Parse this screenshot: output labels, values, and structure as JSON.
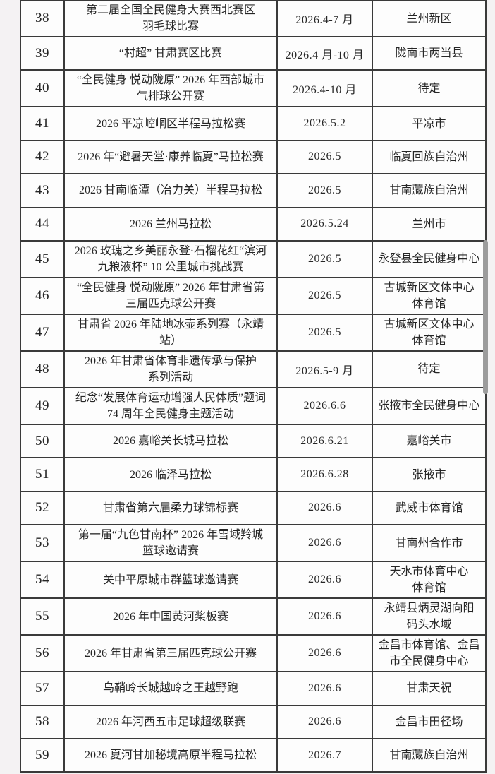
{
  "page": {
    "background_color": "#f4f2f3",
    "cell_background_color": "#fdfdfd",
    "border_color": "#3a3a3a",
    "text_color": "#262626",
    "scrollbar_color": "#9c9c9c"
  },
  "table": {
    "rows": [
      {
        "no": "38",
        "name": "第二届全国全民健身大赛西北赛区\n羽毛球比赛",
        "date": "2026.4-7 月",
        "location": "兰州新区"
      },
      {
        "no": "39",
        "name": "“村超” 甘肃赛区比赛",
        "date": "2026.4 月-10 月",
        "location": "陇南市两当县"
      },
      {
        "no": "40",
        "name": "“全民健身 悦动陇原” 2026 年西部城市\n气排球公开赛",
        "date": "2026.4-10 月",
        "location": "待定"
      },
      {
        "no": "41",
        "name": "2026 平凉崆峒区半程马拉松赛",
        "date": "2026.5.2",
        "location": "平凉市"
      },
      {
        "no": "42",
        "name": "2026 年“避暑天堂·康养临夏”马拉松赛",
        "date": "2026.5",
        "location": "临夏回族自治州"
      },
      {
        "no": "43",
        "name": "2026 甘南临潭（冶力关）半程马拉松",
        "date": "2026.5",
        "location": "甘南藏族自治州"
      },
      {
        "no": "44",
        "name": "2026 兰州马拉松",
        "date": "2026.5.24",
        "location": "兰州市"
      },
      {
        "no": "45",
        "name": "2026 玫瑰之乡美丽永登·石榴花红“滨河\n九粮液杯” 10 公里城市挑战赛",
        "date": "2026.5",
        "location": "永登县全民健身中心"
      },
      {
        "no": "46",
        "name": "“全民健身 悦动陇原” 2026 年甘肃省第\n三届匹克球公开赛",
        "date": "2026.5",
        "location": "古城新区文体中心\n体育馆"
      },
      {
        "no": "47",
        "name": "甘肃省 2026 年陆地冰壶系列赛（永靖站）",
        "date": "2026.5",
        "location": "古城新区文体中心\n体育馆"
      },
      {
        "no": "48",
        "name": "2026 年甘肃省体育非遗传承与保护\n系列活动",
        "date": "2026.5-9 月",
        "location": "待定"
      },
      {
        "no": "49",
        "name": "纪念“发展体育运动增强人民体质”题词\n74 周年全民健身主题活动",
        "date": "2026.6.6",
        "location": "张掖市全民健身中心"
      },
      {
        "no": "50",
        "name": "2026 嘉峪关长城马拉松",
        "date": "2026.6.21",
        "location": "嘉峪关市"
      },
      {
        "no": "51",
        "name": "2026 临泽马拉松",
        "date": "2026.6.28",
        "location": "张掖市"
      },
      {
        "no": "52",
        "name": "甘肃省第六届柔力球锦标赛",
        "date": "2026.6",
        "location": "武威市体育馆"
      },
      {
        "no": "53",
        "name": "第一届“九色甘南杯” 2026 年雪域羚城\n篮球邀请赛",
        "date": "2026.6",
        "location": "甘南州合作市"
      },
      {
        "no": "54",
        "name": "关中平原城市群篮球邀请赛",
        "date": "2026.6",
        "location": "天水市体育中心\n体育馆"
      },
      {
        "no": "55",
        "name": "2026 年中国黄河桨板赛",
        "date": "2026.6",
        "location": "永靖县炳灵湖向阳\n码头水域"
      },
      {
        "no": "56",
        "name": "2026 年甘肃省第三届匹克球公开赛",
        "date": "2026.6",
        "location": "金昌市体育馆、金昌\n市全民健身中心"
      },
      {
        "no": "57",
        "name": "乌鞘岭长城越岭之王越野跑",
        "date": "2026.6",
        "location": "甘肃天祝"
      },
      {
        "no": "58",
        "name": "2026 年河西五市足球超级联赛",
        "date": "2026.6",
        "location": "金昌市田径场"
      },
      {
        "no": "59",
        "name": "2026 夏河甘加秘境高原半程马拉松",
        "date": "2026.7",
        "location": "甘南藏族自治州"
      }
    ]
  }
}
